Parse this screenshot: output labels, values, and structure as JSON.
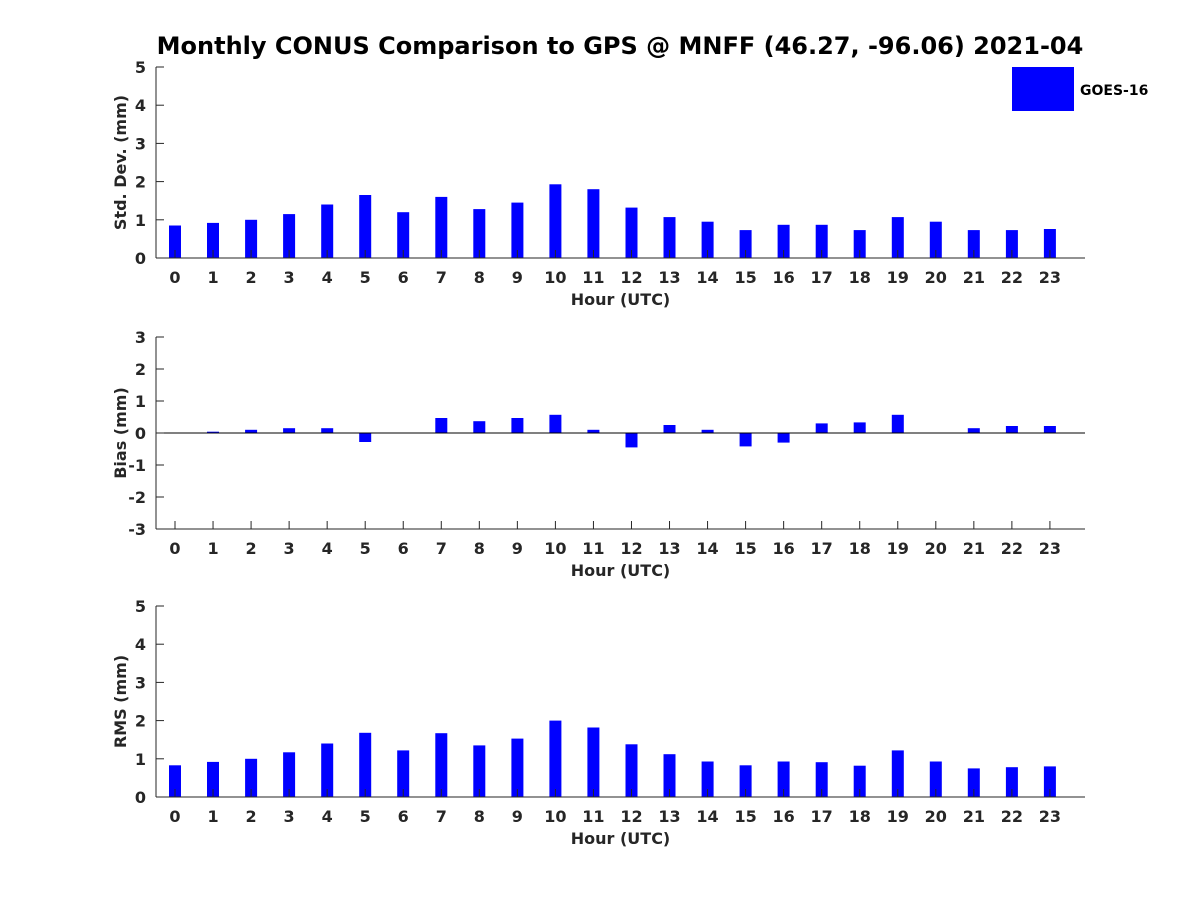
{
  "chart_data": {
    "title": "Monthly CONUS Comparison to GPS @ MNFF (46.27, -96.06) 2021-04",
    "legend": {
      "label": "GOES-16",
      "color": "#0000ff",
      "placement": "top-right"
    },
    "categories": [
      "0",
      "1",
      "2",
      "3",
      "4",
      "5",
      "6",
      "7",
      "8",
      "9",
      "10",
      "11",
      "12",
      "13",
      "14",
      "15",
      "16",
      "17",
      "18",
      "19",
      "20",
      "21",
      "22",
      "23"
    ],
    "panels": [
      {
        "type": "bar",
        "ylabel": "Std. Dev. (mm)",
        "xlabel": "Hour (UTC)",
        "ylim": [
          0,
          5
        ],
        "yticks": [
          "0",
          "1",
          "2",
          "3",
          "4",
          "5"
        ],
        "series": [
          {
            "name": "GOES-16",
            "values": [
              0.85,
              0.92,
              1.0,
              1.15,
              1.4,
              1.65,
              1.2,
              1.6,
              1.28,
              1.45,
              1.93,
              1.8,
              1.32,
              1.07,
              0.95,
              0.73,
              0.87,
              0.87,
              0.73,
              1.07,
              0.95,
              0.73,
              0.73,
              0.76
            ]
          }
        ]
      },
      {
        "type": "bar",
        "ylabel": "Bias (mm)",
        "xlabel": "Hour (UTC)",
        "ylim": [
          -3,
          3
        ],
        "yticks": [
          "-3",
          "-2",
          "-1",
          "0",
          "1",
          "2",
          "3"
        ],
        "series": [
          {
            "name": "GOES-16",
            "values": [
              0.0,
              0.04,
              0.1,
              0.15,
              0.15,
              -0.28,
              0.0,
              0.47,
              0.37,
              0.47,
              0.57,
              0.1,
              -0.45,
              0.25,
              0.1,
              -0.42,
              -0.3,
              0.3,
              0.33,
              0.57,
              0.0,
              0.15,
              0.22,
              0.22
            ]
          }
        ]
      },
      {
        "type": "bar",
        "ylabel": "RMS (mm)",
        "xlabel": "Hour (UTC)",
        "ylim": [
          0,
          5
        ],
        "yticks": [
          "0",
          "1",
          "2",
          "3",
          "4",
          "5"
        ],
        "series": [
          {
            "name": "GOES-16",
            "values": [
              0.83,
              0.92,
              1.0,
              1.17,
              1.4,
              1.68,
              1.22,
              1.67,
              1.35,
              1.53,
              2.0,
              1.82,
              1.38,
              1.12,
              0.93,
              0.83,
              0.93,
              0.91,
              0.82,
              1.22,
              0.93,
              0.75,
              0.78,
              0.8
            ]
          }
        ]
      }
    ]
  }
}
